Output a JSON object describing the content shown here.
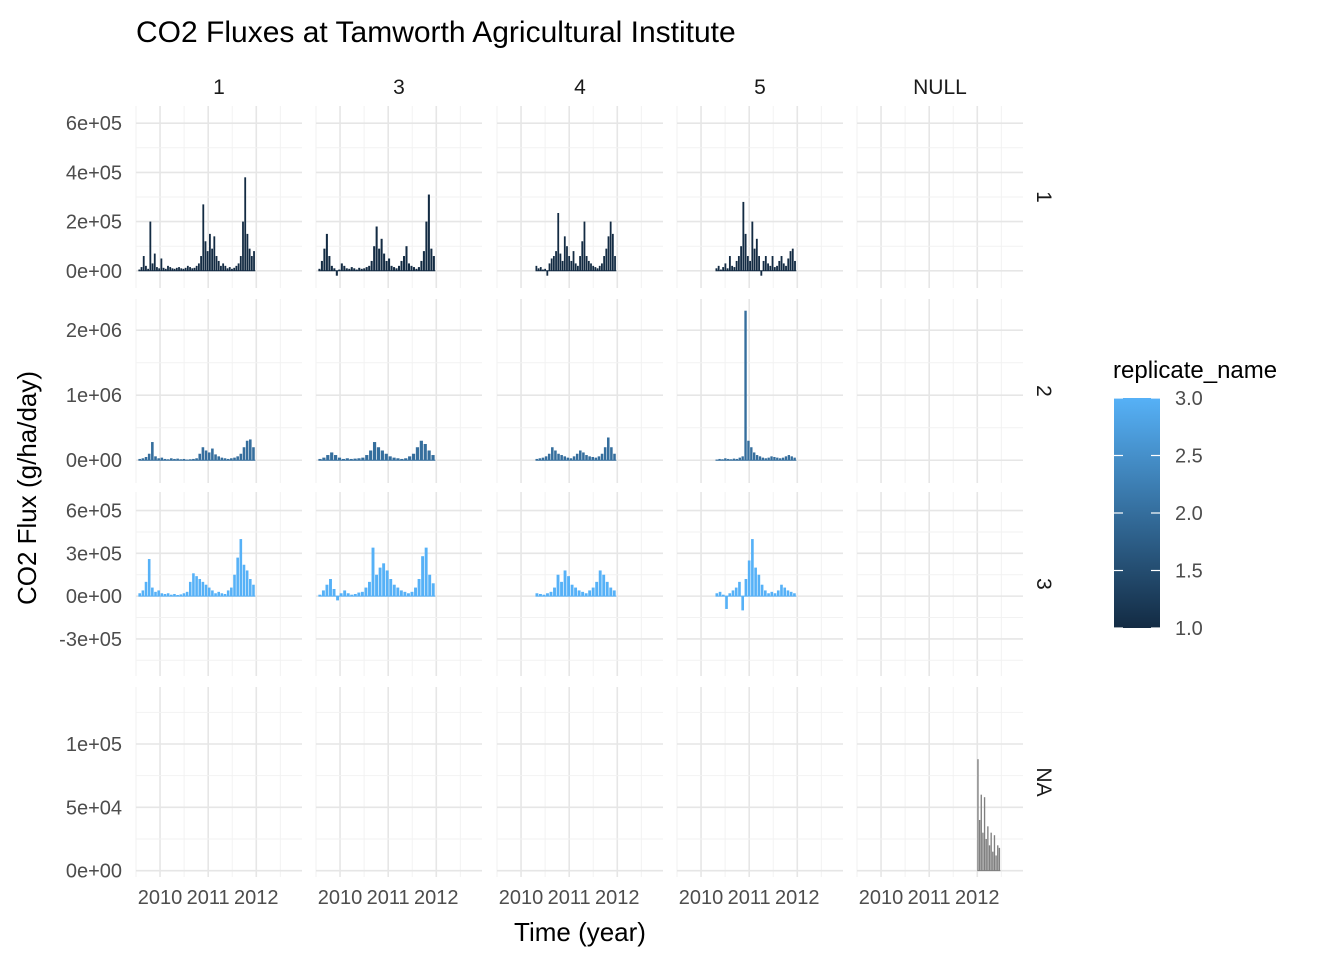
{
  "chart_data": {
    "type": "bar",
    "title": "CO2 Fluxes at Tamworth Agricultural Institute",
    "xlabel": "Time (year)",
    "ylabel": "CO2 Flux (g/ha/day)",
    "facet_cols": [
      "1",
      "3",
      "4",
      "5",
      "NULL"
    ],
    "facet_rows": [
      "1",
      "2",
      "3",
      "NA"
    ],
    "x_ticks": [
      "2010",
      "2011",
      "2012"
    ],
    "xlim": [
      2009.5,
      2012.95
    ],
    "scales": "free_y per row",
    "grid": true,
    "rows": [
      {
        "label": "1",
        "ylim": [
          -70000,
          670000
        ],
        "y_ticks": [
          0,
          200000,
          400000,
          600000
        ],
        "y_tick_labels": [
          "0e+00",
          "2e+05",
          "4e+05",
          "6e+05"
        ],
        "replicate_name": 1.0
      },
      {
        "label": "2",
        "ylim": [
          -350000,
          2480000
        ],
        "y_ticks": [
          0,
          1000000,
          2000000
        ],
        "y_tick_labels": [
          "0e+00",
          "1e+06",
          "2e+06"
        ],
        "replicate_name": 2.0
      },
      {
        "label": "3",
        "ylim": [
          -560000,
          730000
        ],
        "y_ticks": [
          -300000,
          0,
          300000,
          600000
        ],
        "y_tick_labels": [
          "-3e+05",
          "0e+00",
          "3e+05",
          "6e+05"
        ],
        "replicate_name": 3.0
      },
      {
        "label": "NA",
        "ylim": [
          -5000,
          145000
        ],
        "y_ticks": [
          0,
          50000,
          100000
        ],
        "y_tick_labels": [
          "0e+00",
          "5e+04",
          "1e+05"
        ],
        "replicate_name": null
      }
    ],
    "series": [
      {
        "row": "1",
        "col": "1",
        "span": [
          2009.55,
          2011.98
        ],
        "values": [
          5000,
          15000,
          60000,
          20000,
          8000,
          200000,
          30000,
          70000,
          15000,
          10000,
          50000,
          12000,
          8000,
          20000,
          15000,
          10000,
          8000,
          12000,
          15000,
          10000,
          8000,
          12000,
          20000,
          15000,
          10000,
          12000,
          20000,
          30000,
          60000,
          270000,
          120000,
          80000,
          150000,
          90000,
          140000,
          60000,
          40000,
          20000,
          30000,
          20000,
          10000,
          15000,
          8000,
          12000,
          20000,
          30000,
          60000,
          200000,
          380000,
          150000,
          90000,
          60000,
          80000
        ]
      },
      {
        "row": "1",
        "col": "3",
        "span": [
          2009.55,
          2011.98
        ],
        "values": [
          8000,
          40000,
          90000,
          150000,
          60000,
          20000,
          10000,
          -20000,
          5000,
          30000,
          20000,
          10000,
          8000,
          15000,
          10000,
          5000,
          12000,
          8000,
          10000,
          15000,
          20000,
          40000,
          100000,
          180000,
          90000,
          130000,
          70000,
          40000,
          50000,
          20000,
          15000,
          10000,
          20000,
          40000,
          60000,
          100000,
          30000,
          20000,
          15000,
          8000,
          15000,
          40000,
          80000,
          200000,
          310000,
          90000,
          60000
        ]
      },
      {
        "row": "1",
        "col": "4",
        "span": [
          2010.3,
          2011.98
        ],
        "values": [
          20000,
          10000,
          15000,
          5000,
          8000,
          -20000,
          30000,
          50000,
          60000,
          80000,
          235000,
          70000,
          40000,
          140000,
          100000,
          60000,
          40000,
          80000,
          30000,
          20000,
          60000,
          120000,
          200000,
          60000,
          40000,
          30000,
          20000,
          15000,
          10000,
          20000,
          30000,
          60000,
          90000,
          140000,
          200000,
          150000,
          60000
        ]
      },
      {
        "row": "1",
        "col": "5",
        "span": [
          2010.3,
          2011.98
        ],
        "values": [
          10000,
          20000,
          5000,
          15000,
          30000,
          10000,
          60000,
          20000,
          15000,
          40000,
          60000,
          100000,
          280000,
          150000,
          60000,
          40000,
          200000,
          90000,
          130000,
          60000,
          -20000,
          40000,
          60000,
          30000,
          20000,
          60000,
          15000,
          20000,
          40000,
          60000,
          30000,
          20000,
          50000,
          80000,
          90000,
          40000
        ]
      },
      {
        "row": "2",
        "col": "1",
        "span": [
          2009.55,
          2011.98
        ],
        "values": [
          20000,
          30000,
          50000,
          100000,
          280000,
          60000,
          30000,
          40000,
          20000,
          15000,
          30000,
          20000,
          25000,
          15000,
          20000,
          10000,
          15000,
          20000,
          30000,
          100000,
          200000,
          150000,
          120000,
          180000,
          90000,
          60000,
          40000,
          30000,
          20000,
          30000,
          40000,
          60000,
          100000,
          200000,
          300000,
          320000,
          200000
        ]
      },
      {
        "row": "2",
        "col": "3",
        "span": [
          2009.55,
          2011.98
        ],
        "values": [
          20000,
          40000,
          80000,
          120000,
          80000,
          40000,
          20000,
          30000,
          20000,
          25000,
          30000,
          40000,
          80000,
          150000,
          280000,
          200000,
          150000,
          100000,
          60000,
          40000,
          30000,
          20000,
          30000,
          60000,
          100000,
          200000,
          300000,
          250000,
          150000,
          80000
        ]
      },
      {
        "row": "2",
        "col": "4",
        "span": [
          2010.3,
          2011.98
        ],
        "values": [
          20000,
          30000,
          40000,
          60000,
          100000,
          200000,
          150000,
          100000,
          80000,
          60000,
          40000,
          30000,
          60000,
          100000,
          150000,
          120000,
          80000,
          60000,
          50000,
          40000,
          60000,
          100000,
          200000,
          350000,
          200000,
          100000
        ]
      },
      {
        "row": "2",
        "col": "5",
        "span": [
          2010.3,
          2011.98
        ],
        "values": [
          10000,
          20000,
          15000,
          30000,
          20000,
          15000,
          25000,
          20000,
          40000,
          60000,
          2300000,
          300000,
          200000,
          120000,
          80000,
          60000,
          40000,
          30000,
          40000,
          60000,
          50000,
          40000,
          30000,
          40000,
          60000,
          80000,
          60000,
          40000
        ]
      },
      {
        "row": "3",
        "col": "1",
        "span": [
          2009.55,
          2011.98
        ],
        "values": [
          20000,
          40000,
          100000,
          260000,
          60000,
          30000,
          40000,
          20000,
          15000,
          20000,
          10000,
          15000,
          8000,
          12000,
          20000,
          30000,
          100000,
          160000,
          140000,
          120000,
          100000,
          80000,
          60000,
          40000,
          20000,
          30000,
          20000,
          15000,
          40000,
          60000,
          150000,
          270000,
          400000,
          220000,
          180000,
          120000,
          80000
        ]
      },
      {
        "row": "3",
        "col": "3",
        "span": [
          2009.55,
          2011.98
        ],
        "values": [
          10000,
          40000,
          80000,
          120000,
          50000,
          -30000,
          20000,
          40000,
          20000,
          10000,
          15000,
          25000,
          30000,
          60000,
          100000,
          340000,
          150000,
          200000,
          230000,
          180000,
          120000,
          80000,
          60000,
          40000,
          30000,
          20000,
          30000,
          60000,
          120000,
          280000,
          340000,
          150000,
          90000
        ]
      },
      {
        "row": "3",
        "col": "4",
        "span": [
          2010.3,
          2011.98
        ],
        "values": [
          20000,
          15000,
          10000,
          20000,
          30000,
          60000,
          150000,
          100000,
          180000,
          140000,
          80000,
          60000,
          40000,
          30000,
          20000,
          40000,
          60000,
          100000,
          180000,
          150000,
          100000,
          60000,
          40000
        ]
      },
      {
        "row": "3",
        "col": "5",
        "span": [
          2010.3,
          2011.98
        ],
        "values": [
          20000,
          30000,
          10000,
          -90000,
          20000,
          40000,
          60000,
          100000,
          -100000,
          120000,
          250000,
          400000,
          200000,
          150000,
          80000,
          40000,
          20000,
          30000,
          20000,
          40000,
          80000,
          60000,
          40000,
          30000,
          20000
        ]
      },
      {
        "row": "NA",
        "col": "NULL",
        "span": [
          2012.0,
          2012.48
        ],
        "values": [
          88000,
          40000,
          60000,
          30000,
          58000,
          25000,
          35000,
          20000,
          30000,
          15000,
          28000,
          12000,
          20000,
          18000
        ]
      }
    ],
    "legend": {
      "title": "replicate_name",
      "type": "colorbar",
      "min": 1.0,
      "max": 3.0,
      "ticks": [
        "1.0",
        "1.5",
        "2.0",
        "2.5",
        "3.0"
      ],
      "low_color": "#132B43",
      "high_color": "#56B1F7",
      "na_color": "#7f7f7f",
      "position": "right"
    }
  }
}
